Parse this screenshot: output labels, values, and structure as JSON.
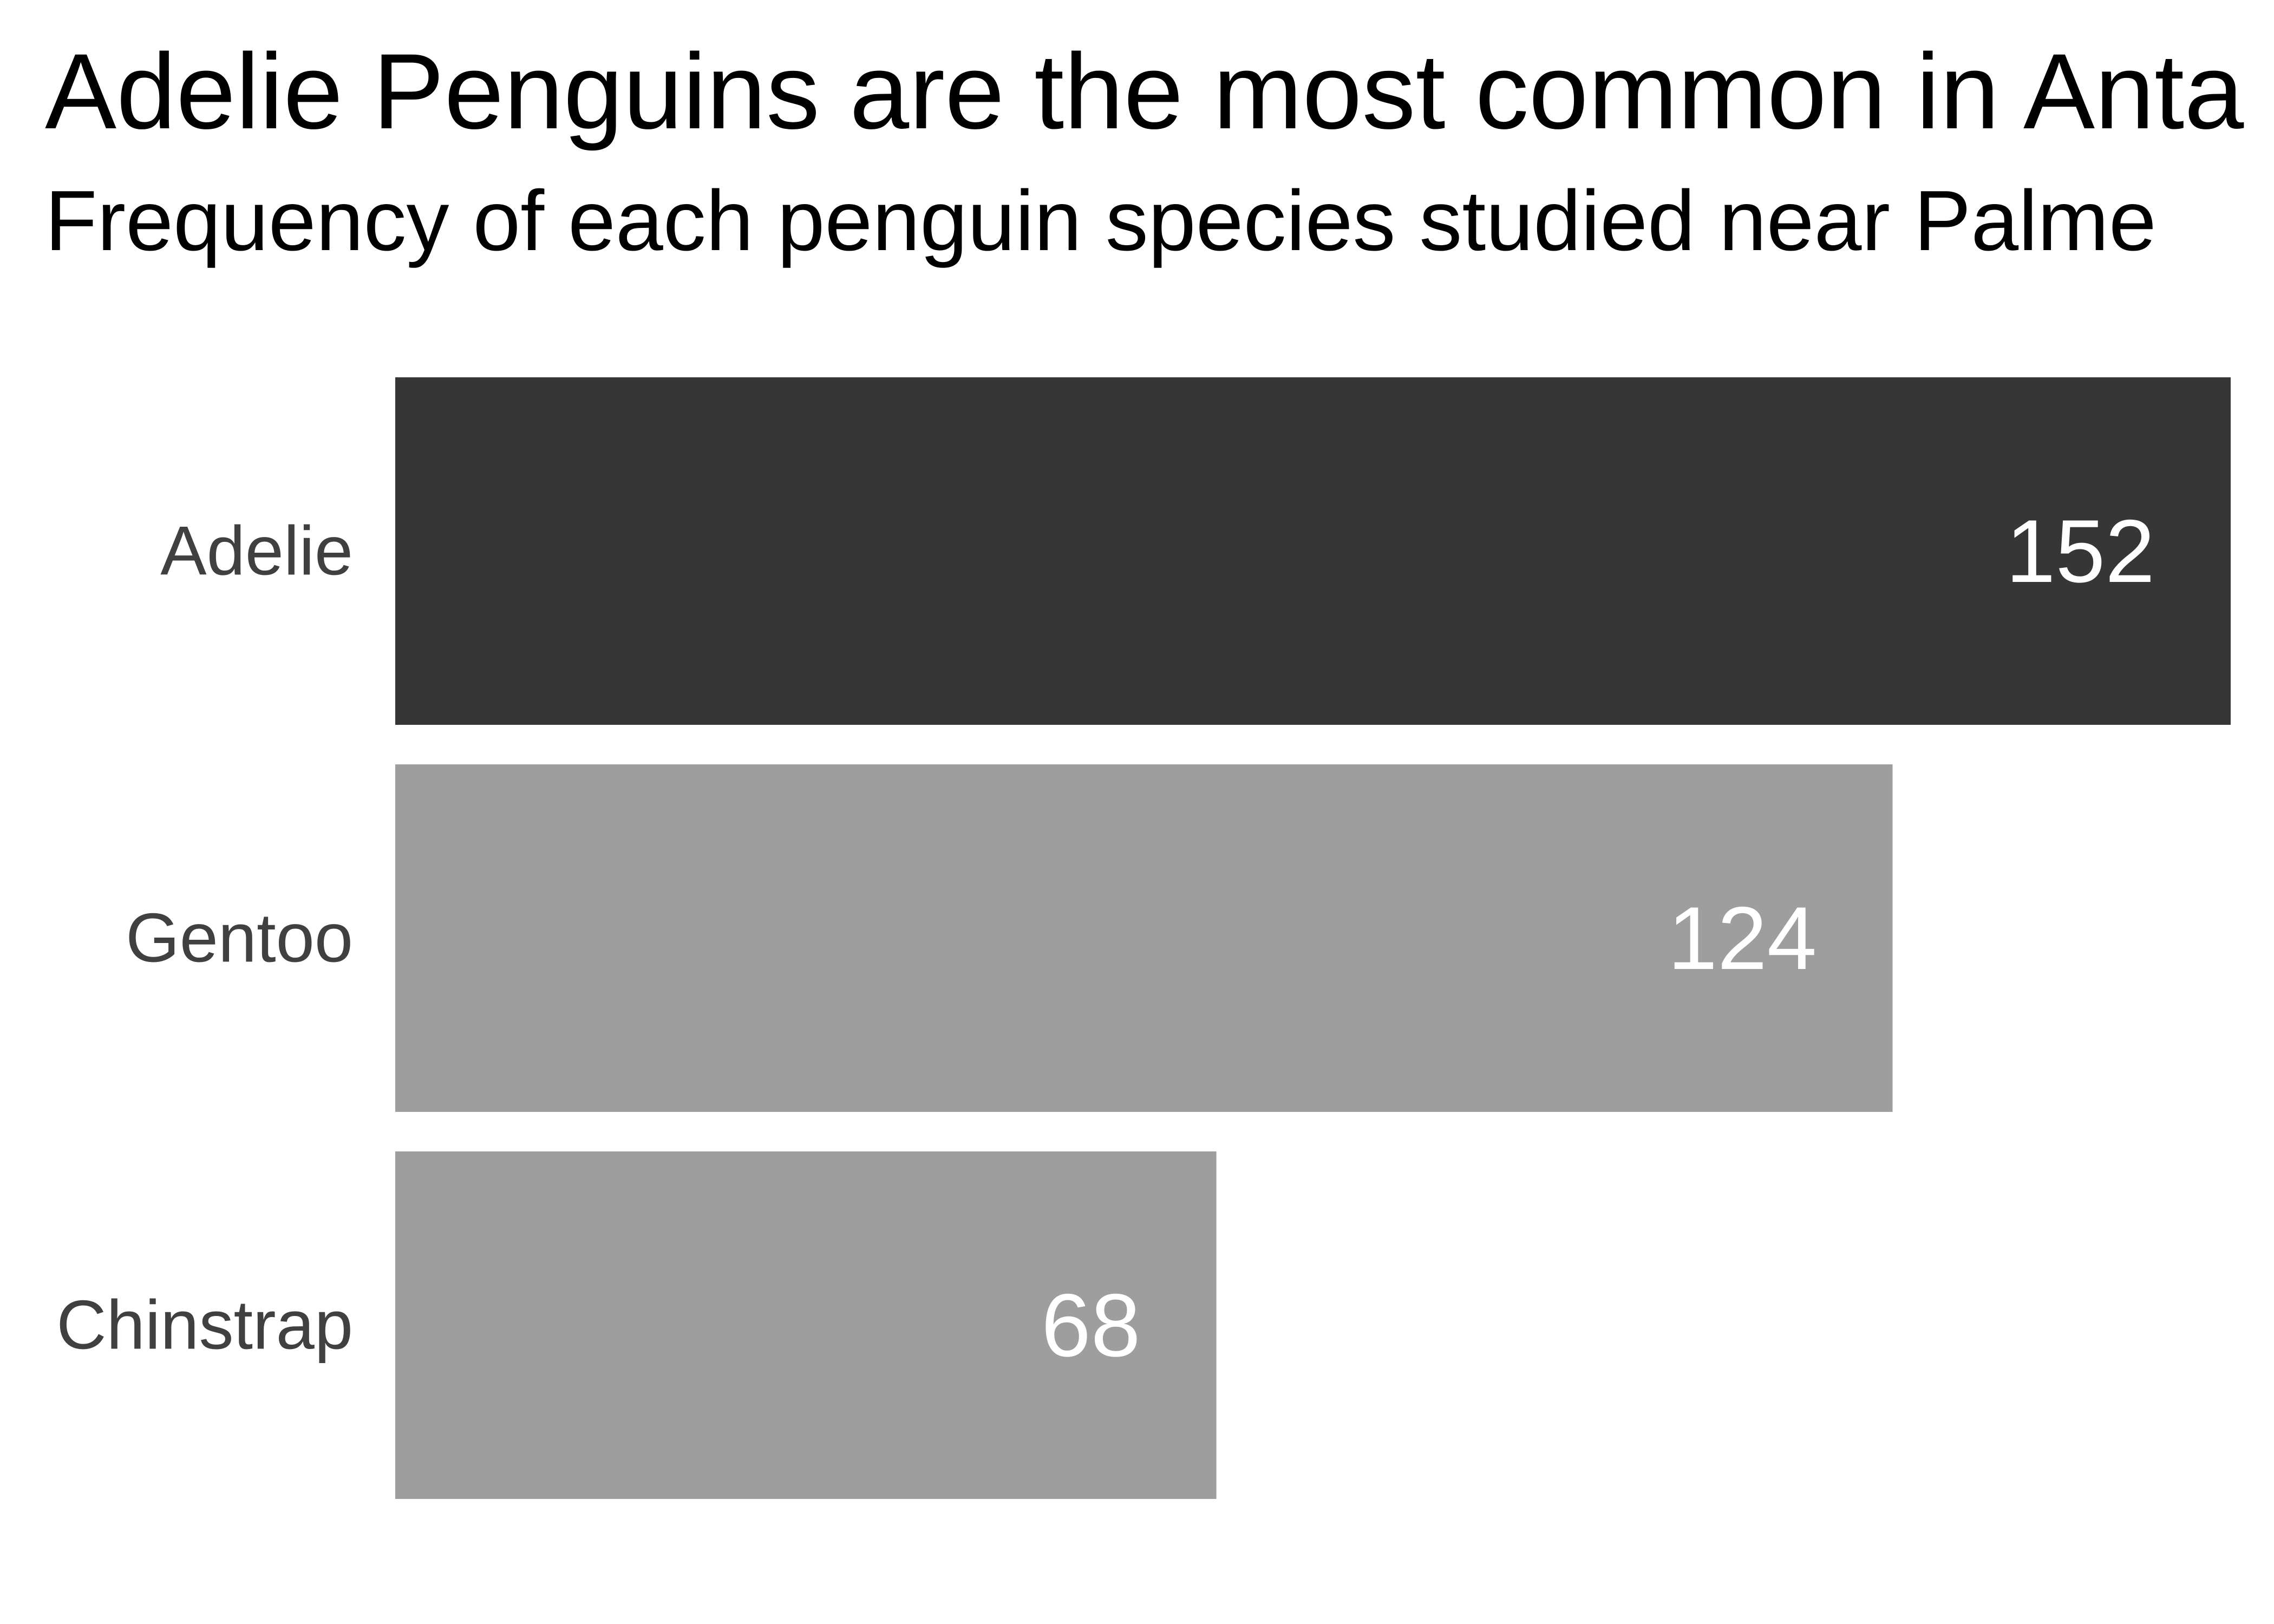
{
  "title": "Adelie Penguins are the most common in Anta",
  "subtitle": "Frequency of each penguin species studied near Palme",
  "colors": {
    "highlight": "#363636",
    "default": "#9e9e9e",
    "value_label": "#ffffff",
    "category_label": "#404040"
  },
  "chart_data": {
    "type": "bar",
    "orientation": "horizontal",
    "categories": [
      "Adelie",
      "Gentoo",
      "Chinstrap"
    ],
    "values": [
      152,
      124,
      68
    ],
    "highlight": [
      "Adelie"
    ],
    "xlim": [
      0,
      152
    ],
    "grid": false,
    "legend": "none",
    "xlabel": "",
    "ylabel": ""
  }
}
